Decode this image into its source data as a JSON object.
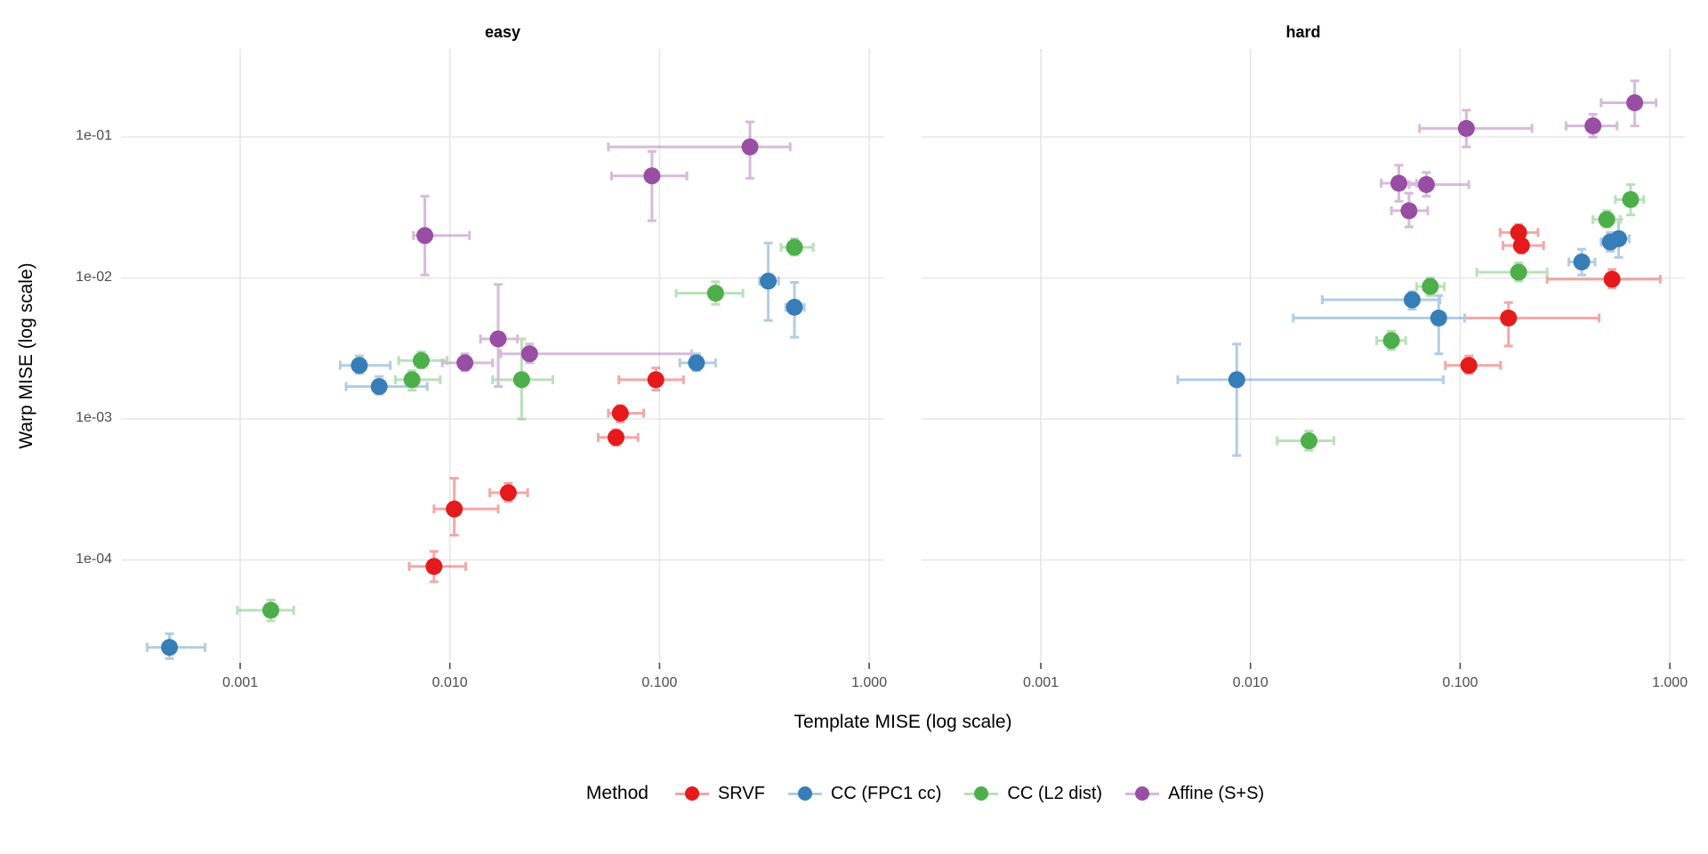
{
  "chart_data": {
    "type": "scatter",
    "xlabel": "Template MISE (log scale)",
    "ylabel": "Warp MISE (log scale)",
    "x_ticks": {
      "labels": [
        "0.001",
        "0.010",
        "0.100",
        "1.000"
      ],
      "values": [
        0.001,
        0.01,
        0.1,
        1.0
      ]
    },
    "y_ticks": {
      "labels": [
        "1e-01",
        "1e-02",
        "1e-03",
        "1e-04"
      ],
      "values": [
        0.1,
        0.01,
        0.001,
        0.0001
      ]
    },
    "x_range": [
      0.00027,
      1.18
    ],
    "y_range": [
      1.9e-05,
      0.42
    ],
    "grid": "major-only",
    "legend_position": "bottom",
    "legend": {
      "title": "Method",
      "entries": [
        {
          "label": "SRVF",
          "color": "#E41A1C"
        },
        {
          "label": "CC (FPC1 cc)",
          "color": "#377EB8"
        },
        {
          "label": "CC (L2 dist)",
          "color": "#4DAF4A"
        },
        {
          "label": "Affine (S+S)",
          "color": "#984EA3"
        }
      ]
    },
    "facets": [
      {
        "label": "easy",
        "series": [
          {
            "name": "SRVF",
            "color": "#E41A1C",
            "points": [
              {
                "x": 0.0084,
                "y": 9e-05,
                "xmin": 0.0064,
                "xmax": 0.0119,
                "ymin": 7e-05,
                "ymax": 0.000115
              },
              {
                "x": 0.0105,
                "y": 0.00023,
                "xmin": 0.0084,
                "xmax": 0.017,
                "ymin": 0.00015,
                "ymax": 0.00038
              },
              {
                "x": 0.019,
                "y": 0.0003,
                "xmin": 0.0155,
                "xmax": 0.0235,
                "ymin": 0.00026,
                "ymax": 0.00035
              },
              {
                "x": 0.062,
                "y": 0.00074,
                "xmin": 0.051,
                "xmax": 0.079,
                "ymin": 0.00065,
                "ymax": 0.00084
              },
              {
                "x": 0.065,
                "y": 0.0011,
                "xmin": 0.057,
                "xmax": 0.084,
                "ymin": 0.00095,
                "ymax": 0.00125
              },
              {
                "x": 0.096,
                "y": 0.0019,
                "xmin": 0.064,
                "xmax": 0.13,
                "ymin": 0.0016,
                "ymax": 0.0023
              }
            ]
          },
          {
            "name": "CC (FPC1 cc)",
            "color": "#377EB8",
            "points": [
              {
                "x": 0.00046,
                "y": 2.4e-05,
                "xmin": 0.00036,
                "xmax": 0.00068,
                "ymin": 2e-05,
                "ymax": 3e-05
              },
              {
                "x": 0.0037,
                "y": 0.0024,
                "xmin": 0.003,
                "xmax": 0.0052,
                "ymin": 0.0021,
                "ymax": 0.0028
              },
              {
                "x": 0.0046,
                "y": 0.0017,
                "xmin": 0.0032,
                "xmax": 0.0078,
                "ymin": 0.0015,
                "ymax": 0.002
              },
              {
                "x": 0.15,
                "y": 0.0025,
                "xmin": 0.125,
                "xmax": 0.185,
                "ymin": 0.0022,
                "ymax": 0.0029
              },
              {
                "x": 0.33,
                "y": 0.0095,
                "xmin": 0.3,
                "xmax": 0.37,
                "ymin": 0.005,
                "ymax": 0.0177
              },
              {
                "x": 0.44,
                "y": 0.0062,
                "xmin": 0.4,
                "xmax": 0.49,
                "ymin": 0.0038,
                "ymax": 0.0093
              }
            ]
          },
          {
            "name": "CC (L2 dist)",
            "color": "#4DAF4A",
            "points": [
              {
                "x": 0.0014,
                "y": 4.4e-05,
                "xmin": 0.00097,
                "xmax": 0.0018,
                "ymin": 3.7e-05,
                "ymax": 5.2e-05
              },
              {
                "x": 0.0066,
                "y": 0.0019,
                "xmin": 0.0055,
                "xmax": 0.009,
                "ymin": 0.0016,
                "ymax": 0.0022
              },
              {
                "x": 0.0073,
                "y": 0.0026,
                "xmin": 0.0057,
                "xmax": 0.0097,
                "ymin": 0.0023,
                "ymax": 0.003
              },
              {
                "x": 0.022,
                "y": 0.0019,
                "xmin": 0.016,
                "xmax": 0.031,
                "ymin": 0.001,
                "ymax": 0.0037
              },
              {
                "x": 0.185,
                "y": 0.0078,
                "xmin": 0.12,
                "xmax": 0.25,
                "ymin": 0.0065,
                "ymax": 0.0094
              },
              {
                "x": 0.44,
                "y": 0.0165,
                "xmin": 0.38,
                "xmax": 0.54,
                "ymin": 0.0145,
                "ymax": 0.019
              }
            ]
          },
          {
            "name": "Affine (S+S)",
            "color": "#984EA3",
            "points": [
              {
                "x": 0.0076,
                "y": 0.02,
                "xmin": 0.0067,
                "xmax": 0.0124,
                "ymin": 0.0105,
                "ymax": 0.038
              },
              {
                "x": 0.0118,
                "y": 0.0025,
                "xmin": 0.0092,
                "xmax": 0.016,
                "ymin": 0.0022,
                "ymax": 0.0029
              },
              {
                "x": 0.017,
                "y": 0.0037,
                "xmin": 0.014,
                "xmax": 0.021,
                "ymin": 0.0017,
                "ymax": 0.009
              },
              {
                "x": 0.024,
                "y": 0.0029,
                "xmin": 0.0175,
                "xmax": 0.142,
                "ymin": 0.0025,
                "ymax": 0.0034
              },
              {
                "x": 0.092,
                "y": 0.053,
                "xmin": 0.059,
                "xmax": 0.135,
                "ymin": 0.0255,
                "ymax": 0.079
              },
              {
                "x": 0.27,
                "y": 0.085,
                "xmin": 0.057,
                "xmax": 0.42,
                "ymin": 0.051,
                "ymax": 0.128
              }
            ]
          }
        ]
      },
      {
        "label": "hard",
        "series": [
          {
            "name": "SRVF",
            "color": "#E41A1C",
            "points": [
              {
                "x": 0.11,
                "y": 0.0024,
                "xmin": 0.085,
                "xmax": 0.156,
                "ymin": 0.0021,
                "ymax": 0.0028
              },
              {
                "x": 0.17,
                "y": 0.0052,
                "xmin": 0.083,
                "xmax": 0.46,
                "ymin": 0.0033,
                "ymax": 0.0067
              },
              {
                "x": 0.19,
                "y": 0.021,
                "xmin": 0.155,
                "xmax": 0.235,
                "ymin": 0.018,
                "ymax": 0.024
              },
              {
                "x": 0.196,
                "y": 0.017,
                "xmin": 0.16,
                "xmax": 0.25,
                "ymin": 0.015,
                "ymax": 0.02
              },
              {
                "x": 0.53,
                "y": 0.0098,
                "xmin": 0.26,
                "xmax": 0.9,
                "ymin": 0.0085,
                "ymax": 0.0115
              }
            ]
          },
          {
            "name": "CC (FPC1 cc)",
            "color": "#377EB8",
            "points": [
              {
                "x": 0.0086,
                "y": 0.0019,
                "xmin": 0.0045,
                "xmax": 0.083,
                "ymin": 0.00055,
                "ymax": 0.0034
              },
              {
                "x": 0.059,
                "y": 0.007,
                "xmin": 0.022,
                "xmax": 0.08,
                "ymin": 0.006,
                "ymax": 0.008
              },
              {
                "x": 0.079,
                "y": 0.0052,
                "xmin": 0.016,
                "xmax": 0.105,
                "ymin": 0.0029,
                "ymax": 0.0075
              },
              {
                "x": 0.38,
                "y": 0.013,
                "xmin": 0.33,
                "xmax": 0.44,
                "ymin": 0.0105,
                "ymax": 0.016
              },
              {
                "x": 0.52,
                "y": 0.018,
                "xmin": 0.47,
                "xmax": 0.58,
                "ymin": 0.0155,
                "ymax": 0.021
              },
              {
                "x": 0.57,
                "y": 0.019,
                "xmin": 0.52,
                "xmax": 0.64,
                "ymin": 0.014,
                "ymax": 0.026
              }
            ]
          },
          {
            "name": "CC (L2 dist)",
            "color": "#4DAF4A",
            "points": [
              {
                "x": 0.019,
                "y": 0.0007,
                "xmin": 0.0134,
                "xmax": 0.025,
                "ymin": 0.0006,
                "ymax": 0.00082
              },
              {
                "x": 0.047,
                "y": 0.0036,
                "xmin": 0.04,
                "xmax": 0.055,
                "ymin": 0.0031,
                "ymax": 0.0042
              },
              {
                "x": 0.072,
                "y": 0.0087,
                "xmin": 0.062,
                "xmax": 0.084,
                "ymin": 0.0075,
                "ymax": 0.01
              },
              {
                "x": 0.19,
                "y": 0.011,
                "xmin": 0.12,
                "xmax": 0.26,
                "ymin": 0.0095,
                "ymax": 0.0128
              },
              {
                "x": 0.5,
                "y": 0.026,
                "xmin": 0.43,
                "xmax": 0.58,
                "ymin": 0.023,
                "ymax": 0.03
              },
              {
                "x": 0.65,
                "y": 0.036,
                "xmin": 0.55,
                "xmax": 0.75,
                "ymin": 0.028,
                "ymax": 0.046
              }
            ]
          },
          {
            "name": "Affine (S+S)",
            "color": "#984EA3",
            "points": [
              {
                "x": 0.051,
                "y": 0.047,
                "xmin": 0.042,
                "xmax": 0.062,
                "ymin": 0.035,
                "ymax": 0.063
              },
              {
                "x": 0.057,
                "y": 0.03,
                "xmin": 0.047,
                "xmax": 0.07,
                "ymin": 0.023,
                "ymax": 0.04
              },
              {
                "x": 0.069,
                "y": 0.046,
                "xmin": 0.057,
                "xmax": 0.11,
                "ymin": 0.038,
                "ymax": 0.056
              },
              {
                "x": 0.107,
                "y": 0.115,
                "xmin": 0.064,
                "xmax": 0.22,
                "ymin": 0.085,
                "ymax": 0.155
              },
              {
                "x": 0.43,
                "y": 0.12,
                "xmin": 0.32,
                "xmax": 0.56,
                "ymin": 0.1,
                "ymax": 0.145
              },
              {
                "x": 0.68,
                "y": 0.175,
                "xmin": 0.47,
                "xmax": 0.86,
                "ymin": 0.12,
                "ymax": 0.25
              }
            ]
          }
        ]
      }
    ],
    "style": {
      "grid_color": "#E7E7E7",
      "tick_color": "#4D4D4D",
      "tick_label_color": "#4D4D4D",
      "axis_title_color": "#000000",
      "point_radius": 9.5,
      "errorbar_opacity": 0.38
    }
  }
}
